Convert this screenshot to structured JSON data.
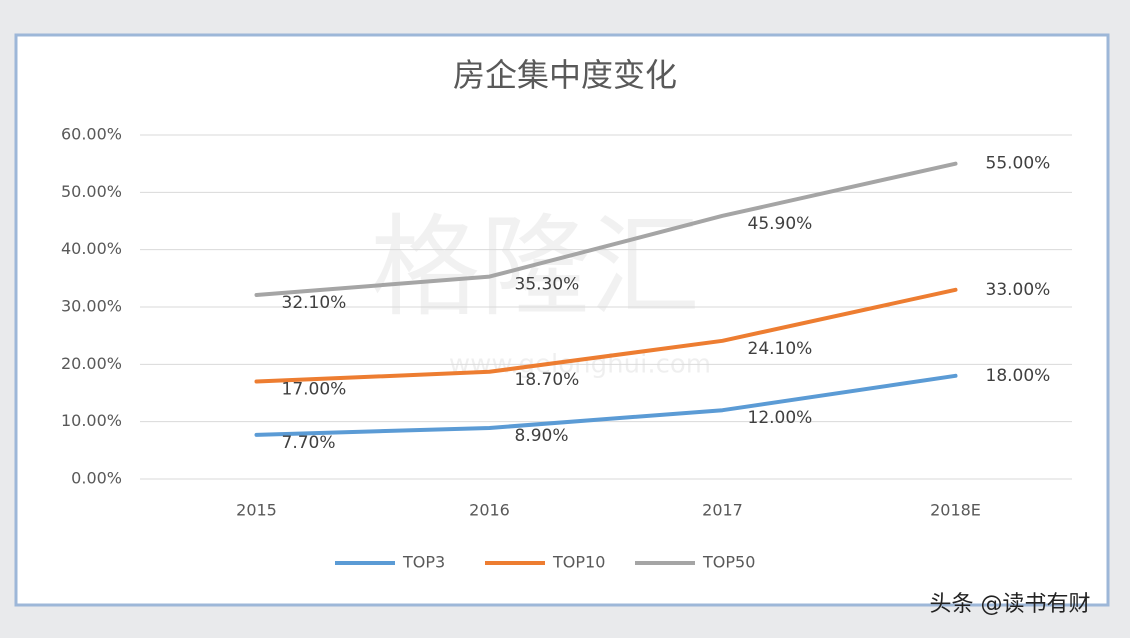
{
  "chart_data": {
    "type": "line",
    "title": "房企集中度变化",
    "categories": [
      "2015",
      "2016",
      "2017",
      "2018E"
    ],
    "series": [
      {
        "name": "TOP3",
        "color": "#5b9bd5",
        "values": [
          7.7,
          8.9,
          12.0,
          18.0
        ],
        "value_labels": [
          "7.70%",
          "8.90%",
          "12.00%",
          "18.00%"
        ]
      },
      {
        "name": "TOP10",
        "color": "#ed7d31",
        "values": [
          17.0,
          18.7,
          24.1,
          33.0
        ],
        "value_labels": [
          "17.00%",
          "18.70%",
          "24.10%",
          "33.00%"
        ]
      },
      {
        "name": "TOP50",
        "color": "#a5a5a5",
        "values": [
          32.1,
          35.3,
          45.9,
          55.0
        ],
        "value_labels": [
          "32.10%",
          "35.30%",
          "45.90%",
          "55.00%"
        ]
      }
    ],
    "ylim": [
      0,
      60
    ],
    "yticks": [
      {
        "value": 0,
        "label": "0.00%"
      },
      {
        "value": 10,
        "label": "10.00%"
      },
      {
        "value": 20,
        "label": "20.00%"
      },
      {
        "value": 30,
        "label": "30.00%"
      },
      {
        "value": 40,
        "label": "40.00%"
      },
      {
        "value": 50,
        "label": "50.00%"
      },
      {
        "value": 60,
        "label": "60.00%"
      }
    ],
    "grid": true,
    "legend": "bottom",
    "watermark": "格隆汇",
    "watermark_url": "www.gelonghui.com"
  },
  "footer": "头条 @读书有财"
}
